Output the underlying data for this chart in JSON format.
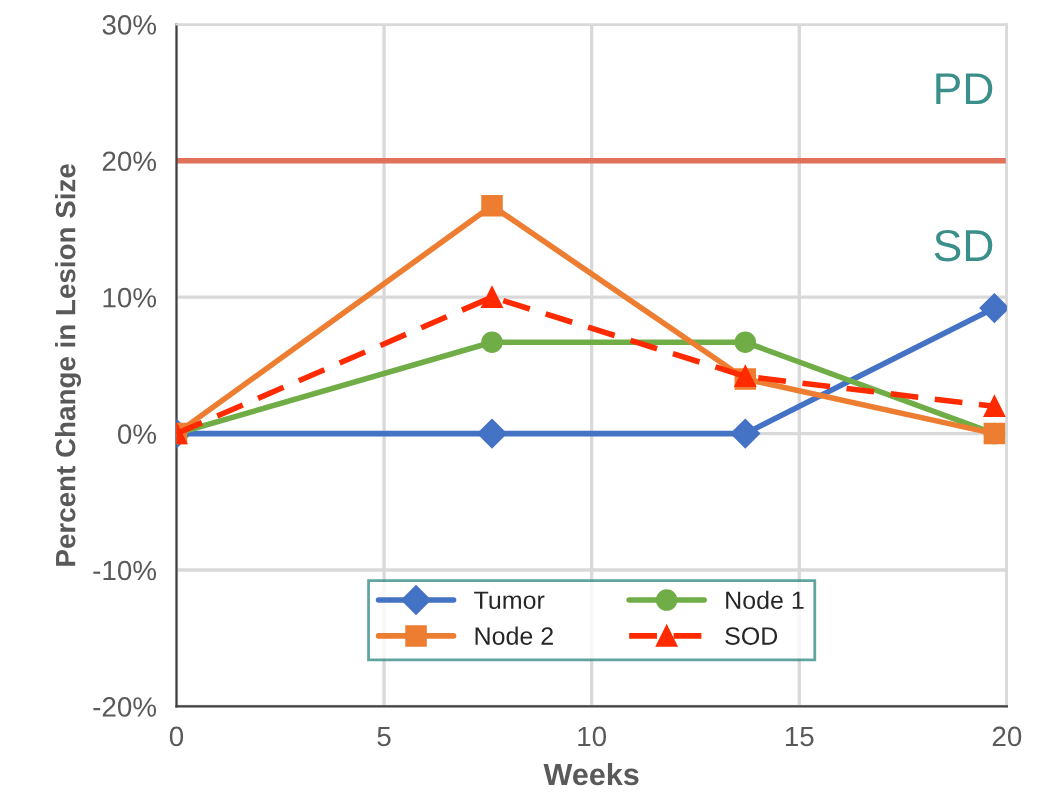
{
  "chart_data": {
    "type": "line",
    "xlabel": "Weeks",
    "ylabel": "Percent Change in Lesion Size",
    "xlim": [
      0,
      20
    ],
    "xticks": [
      0,
      5,
      10,
      15,
      20
    ],
    "ylim": [
      -20,
      30
    ],
    "yticks": [
      {
        "value": -20,
        "label": "-20%"
      },
      {
        "value": -10,
        "label": "-10%"
      },
      {
        "value": 0,
        "label": "0%"
      },
      {
        "value": 10,
        "label": "10%"
      },
      {
        "value": 20,
        "label": "20%"
      },
      {
        "value": 30,
        "label": "30%"
      }
    ],
    "x": [
      0,
      7.6,
      13.7,
      19.7
    ],
    "series": [
      {
        "name": "Tumor",
        "color": "#4472c4",
        "values": [
          0,
          0,
          0,
          9.2
        ],
        "marker": "diamond",
        "line_style": "solid"
      },
      {
        "name": "Node 1",
        "color": "#70ad47",
        "values": [
          0,
          6.7,
          6.7,
          0
        ],
        "marker": "circle",
        "line_style": "solid"
      },
      {
        "name": "Node 2",
        "color": "#ed7d31",
        "values": [
          0,
          16.7,
          4.0,
          0
        ],
        "marker": "square",
        "line_style": "solid"
      },
      {
        "name": "SOD",
        "color": "#ff2a00",
        "values": [
          0,
          10,
          4.2,
          2.0
        ],
        "marker": "triangle",
        "line_style": "dashed"
      }
    ],
    "ref_lines": [
      {
        "axis": "y",
        "value": 20,
        "color": "#e0705a"
      }
    ],
    "annotations": [
      "PD",
      "SD"
    ],
    "grid": true,
    "legend": "bottom"
  }
}
